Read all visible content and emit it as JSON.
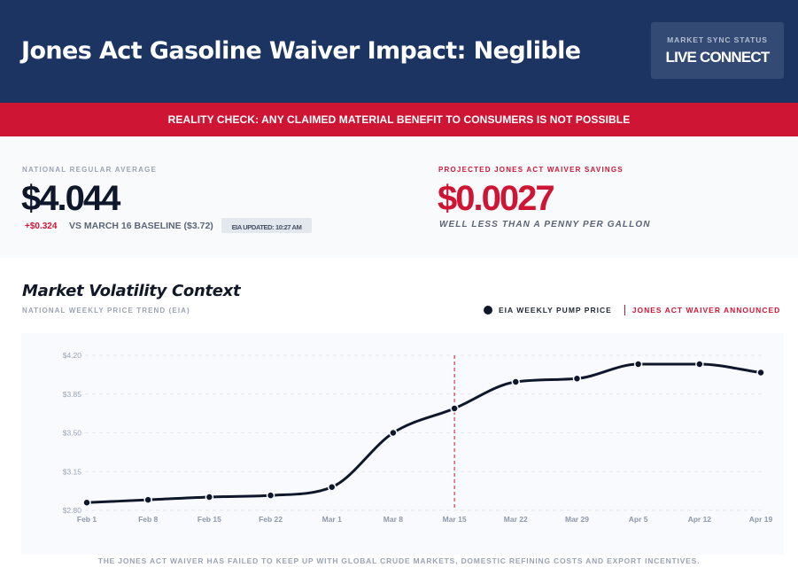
{
  "header": {
    "title": "Jones Act Gasoline Waiver Impact: Neglible",
    "sync_status_label": "MARKET SYNC STATUS",
    "sync_status_value": "LIVE CONNECT"
  },
  "alert": {
    "text": "REALITY CHECK: ANY CLAIMED MATERIAL BENEFIT TO CONSUMERS IS NOT POSSIBLE"
  },
  "stats": {
    "national": {
      "label": "NATIONAL REGULAR AVERAGE",
      "value": "$4.044",
      "delta": "+$0.324",
      "baseline": "VS MARCH 16 BASELINE ($3.72)",
      "updated": "EIA UPDATED: 10:27 AM"
    },
    "savings": {
      "label": "PROJECTED JONES ACT WAIVER SAVINGS",
      "value": "$0.0027",
      "subtitle": "WELL LESS THAN A PENNY PER GALLON"
    }
  },
  "colors": {
    "navy": "#1c3461",
    "accent_red": "#cf1534",
    "line": "#0f172a"
  },
  "chart_data": {
    "type": "line",
    "title": "Market Volatility Context",
    "subtitle": "NATIONAL WEEKLY PRICE TREND (EIA)",
    "xlabel": "",
    "ylabel": "",
    "categories": [
      "Feb 1",
      "Feb 8",
      "Feb 15",
      "Feb 22",
      "Mar 1",
      "Mar 8",
      "Mar 15",
      "Mar 22",
      "Mar 29",
      "Apr 5",
      "Apr 12",
      "Apr 19"
    ],
    "series": [
      {
        "name": "EIA WEEKLY PUMP PRICE",
        "values": [
          2.87,
          2.895,
          2.92,
          2.935,
          3.01,
          3.5,
          3.72,
          3.96,
          3.99,
          4.12,
          4.12,
          4.044
        ]
      }
    ],
    "ylim": [
      2.8,
      4.2
    ],
    "yticks": [
      2.8,
      3.15,
      3.5,
      3.85,
      4.2
    ],
    "ytick_labels": [
      "$2.80",
      "$3.15",
      "$3.50",
      "$3.85",
      "$4.20"
    ],
    "grid": true,
    "legend": {
      "placement": "top-right",
      "entries": [
        "EIA WEEKLY PUMP PRICE",
        "JONES ACT WAIVER ANNOUNCED"
      ]
    },
    "annotations": [
      {
        "type": "vertical-line",
        "x": "Mar 15",
        "label": "JONES ACT WAIVER ANNOUNCED"
      }
    ]
  },
  "footer": {
    "note": "THE JONES ACT WAIVER HAS FAILED TO KEEP UP WITH GLOBAL CRUDE MARKETS, DOMESTIC REFINING COSTS AND EXPORT INCENTIVES."
  }
}
